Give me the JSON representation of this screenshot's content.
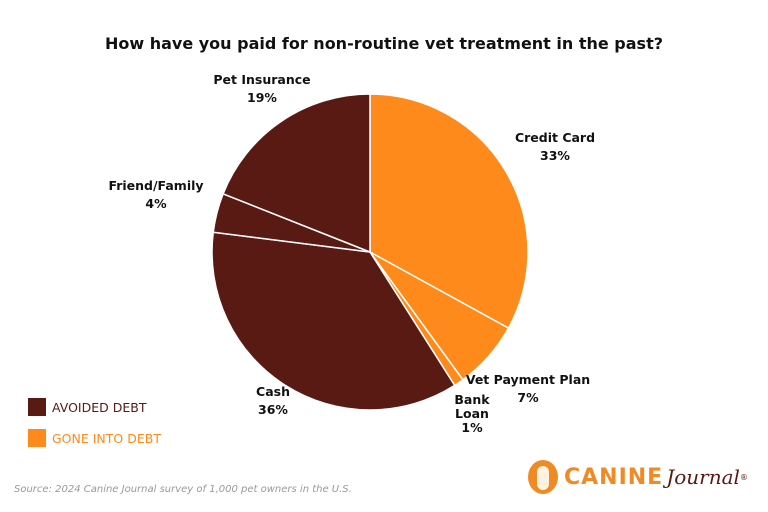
{
  "chart_data": {
    "type": "pie",
    "title": "How have you paid for non-routine vet treatment in the past?",
    "slices": [
      {
        "label": "Credit Card",
        "value": 33,
        "value_label": "33%",
        "group": "GONE INTO DEBT"
      },
      {
        "label": "Vet Payment Plan",
        "value": 7,
        "value_label": "7%",
        "group": "GONE INTO DEBT"
      },
      {
        "label": "Bank Loan",
        "value": 1,
        "value_label": "1%",
        "group": "GONE INTO DEBT"
      },
      {
        "label": "Cash",
        "value": 36,
        "value_label": "36%",
        "group": "AVOIDED DEBT"
      },
      {
        "label": "Friend/Family",
        "value": 4,
        "value_label": "4%",
        "group": "AVOIDED DEBT"
      },
      {
        "label": "Pet Insurance",
        "value": 19,
        "value_label": "19%",
        "group": "AVOIDED DEBT"
      }
    ],
    "start": "top, clockwise",
    "legend": {
      "placement": "bottom-left",
      "items": [
        {
          "label": "AVOIDED DEBT",
          "color": "#5a1a14"
        },
        {
          "label": "GONE INTO DEBT",
          "color": "#ff8a1c"
        }
      ]
    }
  },
  "source": "Source: 2024 Canine Journal survey of 1,000 pet owners in the U.S.",
  "logo": {
    "text_1": "CANINE",
    "text_2": "Journal",
    "mark": "®"
  }
}
